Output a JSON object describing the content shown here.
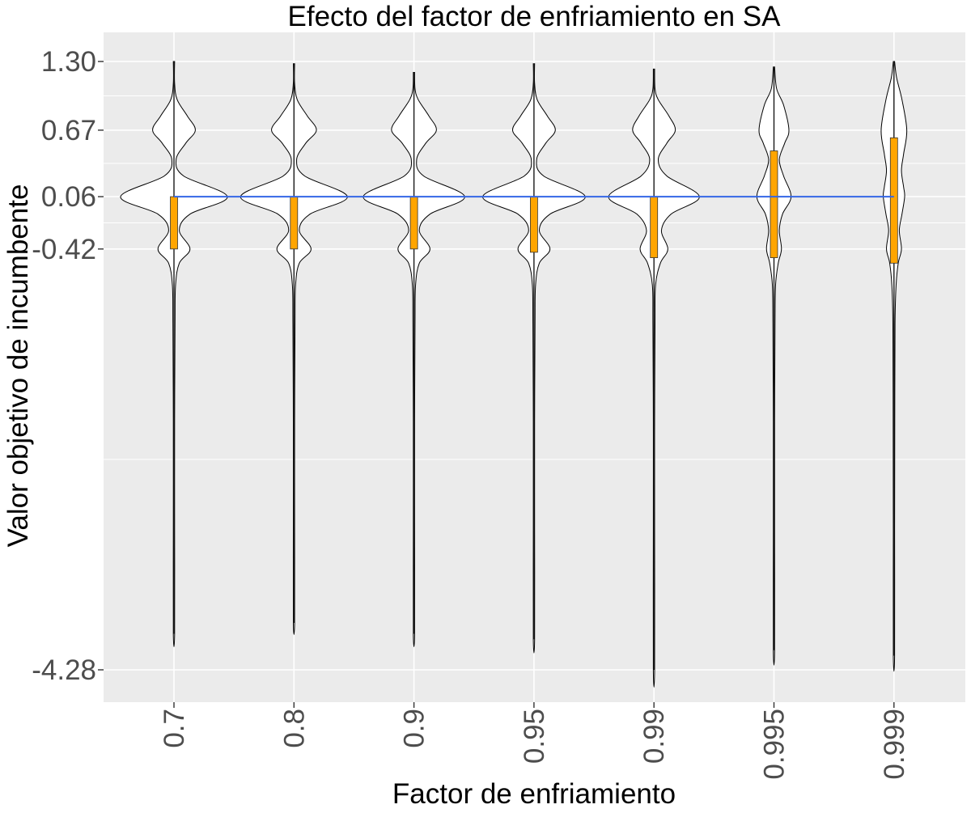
{
  "chart_data": {
    "type": "violin",
    "title": "Efecto del factor de enfriamiento en SA",
    "xlabel": "Factor de enfriamiento",
    "ylabel": "Valor objetivo de incumbente",
    "categories": [
      "0.7",
      "0.8",
      "0.9",
      "0.95",
      "0.99",
      "0.995",
      "0.999"
    ],
    "y_ticks": [
      1.3,
      0.67,
      0.06,
      -0.42,
      -4.28
    ],
    "y_tick_labels": [
      "1.30",
      "0.67",
      "0.06",
      "-0.42",
      "-4.28"
    ],
    "ylim": [
      -4.55,
      1.55
    ],
    "grid": true,
    "reference_line": {
      "y": 0.06,
      "color": "#3366e6"
    },
    "series": [
      {
        "category": "0.7",
        "min": -3.95,
        "max": 1.3,
        "q1": -0.42,
        "q3": 0.06,
        "peak_main": 0.06,
        "peak_upper": 0.67,
        "peak_lower": -0.42,
        "density_at": [
          [
            1.3,
            0.0
          ],
          [
            1.1,
            0.01
          ],
          [
            0.95,
            0.06
          ],
          [
            0.8,
            0.25
          ],
          [
            0.67,
            0.4
          ],
          [
            0.55,
            0.22
          ],
          [
            0.4,
            0.04
          ],
          [
            0.25,
            0.18
          ],
          [
            0.06,
            1.0
          ],
          [
            -0.1,
            0.3
          ],
          [
            -0.25,
            0.1
          ],
          [
            -0.42,
            0.3
          ],
          [
            -0.55,
            0.1
          ],
          [
            -0.75,
            0.03
          ],
          [
            -1.1,
            0.02
          ],
          [
            -2.0,
            0.01
          ],
          [
            -3.0,
            0.005
          ],
          [
            -3.95,
            0.0
          ]
        ]
      },
      {
        "category": "0.8",
        "min": -3.85,
        "max": 1.28,
        "q1": -0.42,
        "q3": 0.06,
        "peak_main": 0.06,
        "peak_upper": 0.67,
        "peak_lower": -0.42,
        "density_at": [
          [
            1.28,
            0.0
          ],
          [
            1.1,
            0.01
          ],
          [
            0.95,
            0.06
          ],
          [
            0.8,
            0.25
          ],
          [
            0.67,
            0.42
          ],
          [
            0.55,
            0.22
          ],
          [
            0.4,
            0.05
          ],
          [
            0.25,
            0.2
          ],
          [
            0.06,
            1.0
          ],
          [
            -0.1,
            0.3
          ],
          [
            -0.25,
            0.1
          ],
          [
            -0.42,
            0.32
          ],
          [
            -0.55,
            0.1
          ],
          [
            -0.75,
            0.03
          ],
          [
            -1.1,
            0.02
          ],
          [
            -2.0,
            0.01
          ],
          [
            -3.0,
            0.005
          ],
          [
            -3.85,
            0.0
          ]
        ]
      },
      {
        "category": "0.9",
        "min": -3.95,
        "max": 1.2,
        "q1": -0.42,
        "q3": 0.06,
        "peak_main": 0.06,
        "peak_upper": 0.67,
        "peak_lower": -0.42,
        "density_at": [
          [
            1.2,
            0.0
          ],
          [
            1.05,
            0.02
          ],
          [
            0.95,
            0.08
          ],
          [
            0.8,
            0.28
          ],
          [
            0.67,
            0.42
          ],
          [
            0.55,
            0.22
          ],
          [
            0.4,
            0.05
          ],
          [
            0.25,
            0.18
          ],
          [
            0.06,
            0.95
          ],
          [
            -0.1,
            0.3
          ],
          [
            -0.25,
            0.1
          ],
          [
            -0.42,
            0.3
          ],
          [
            -0.55,
            0.1
          ],
          [
            -0.75,
            0.03
          ],
          [
            -1.1,
            0.02
          ],
          [
            -2.0,
            0.01
          ],
          [
            -3.0,
            0.005
          ],
          [
            -3.95,
            0.0
          ]
        ]
      },
      {
        "category": "0.95",
        "min": -4.0,
        "max": 1.28,
        "q1": -0.45,
        "q3": 0.06,
        "peak_main": 0.06,
        "peak_upper": 0.67,
        "peak_lower": -0.42,
        "density_at": [
          [
            1.28,
            0.0
          ],
          [
            1.1,
            0.01
          ],
          [
            0.95,
            0.06
          ],
          [
            0.8,
            0.25
          ],
          [
            0.67,
            0.4
          ],
          [
            0.55,
            0.22
          ],
          [
            0.4,
            0.05
          ],
          [
            0.25,
            0.18
          ],
          [
            0.06,
            0.96
          ],
          [
            -0.1,
            0.3
          ],
          [
            -0.25,
            0.1
          ],
          [
            -0.42,
            0.3
          ],
          [
            -0.55,
            0.1
          ],
          [
            -0.75,
            0.03
          ],
          [
            -1.1,
            0.02
          ],
          [
            -2.0,
            0.01
          ],
          [
            -3.0,
            0.005
          ],
          [
            -4.0,
            0.0
          ]
        ]
      },
      {
        "category": "0.99",
        "min": -4.28,
        "max": 1.23,
        "q1": -0.5,
        "q3": 0.06,
        "peak_main": 0.06,
        "peak_upper": 0.67,
        "peak_lower": -0.42,
        "density_at": [
          [
            1.23,
            0.0
          ],
          [
            1.05,
            0.02
          ],
          [
            0.95,
            0.08
          ],
          [
            0.8,
            0.28
          ],
          [
            0.67,
            0.4
          ],
          [
            0.55,
            0.24
          ],
          [
            0.4,
            0.08
          ],
          [
            0.25,
            0.24
          ],
          [
            0.06,
            0.85
          ],
          [
            -0.1,
            0.32
          ],
          [
            -0.25,
            0.14
          ],
          [
            -0.42,
            0.26
          ],
          [
            -0.55,
            0.12
          ],
          [
            -0.75,
            0.03
          ],
          [
            -1.1,
            0.02
          ],
          [
            -2.0,
            0.01
          ],
          [
            -3.0,
            0.005
          ],
          [
            -4.28,
            0.0
          ]
        ]
      },
      {
        "category": "0.995",
        "min": -4.1,
        "max": 1.25,
        "q1": -0.5,
        "q3": 0.48,
        "peak_main": 0.06,
        "peak_upper": 0.67,
        "peak_lower": -0.42,
        "density_at": [
          [
            1.25,
            0.0
          ],
          [
            1.05,
            0.05
          ],
          [
            0.9,
            0.18
          ],
          [
            0.67,
            0.28
          ],
          [
            0.55,
            0.2
          ],
          [
            0.4,
            0.1
          ],
          [
            0.25,
            0.18
          ],
          [
            0.06,
            0.32
          ],
          [
            -0.1,
            0.16
          ],
          [
            -0.25,
            0.1
          ],
          [
            -0.42,
            0.14
          ],
          [
            -0.55,
            0.08
          ],
          [
            -0.75,
            0.03
          ],
          [
            -1.1,
            0.02
          ],
          [
            -2.0,
            0.01
          ],
          [
            -3.0,
            0.005
          ],
          [
            -4.1,
            0.0
          ]
        ]
      },
      {
        "category": "0.999",
        "min": -4.15,
        "max": 1.3,
        "q1": -0.55,
        "q3": 0.6,
        "peak_main": 0.06,
        "peak_upper": 0.67,
        "peak_lower": -0.42,
        "density_at": [
          [
            1.3,
            0.0
          ],
          [
            1.15,
            0.05
          ],
          [
            0.95,
            0.15
          ],
          [
            0.67,
            0.24
          ],
          [
            0.45,
            0.18
          ],
          [
            0.3,
            0.14
          ],
          [
            0.15,
            0.18
          ],
          [
            0.06,
            0.2
          ],
          [
            -0.1,
            0.15
          ],
          [
            -0.25,
            0.1
          ],
          [
            -0.42,
            0.14
          ],
          [
            -0.55,
            0.08
          ],
          [
            -0.75,
            0.04
          ],
          [
            -1.1,
            0.02
          ],
          [
            -2.0,
            0.015
          ],
          [
            -3.0,
            0.005
          ],
          [
            -4.15,
            0.0
          ]
        ]
      }
    ],
    "colors": {
      "panel_bg": "#ebebeb",
      "grid_major": "#ffffff",
      "violin_fill": "#ffffff",
      "violin_stroke": "#000000",
      "box_fill": "#ffa500",
      "reference_line": "#3366e6"
    }
  }
}
